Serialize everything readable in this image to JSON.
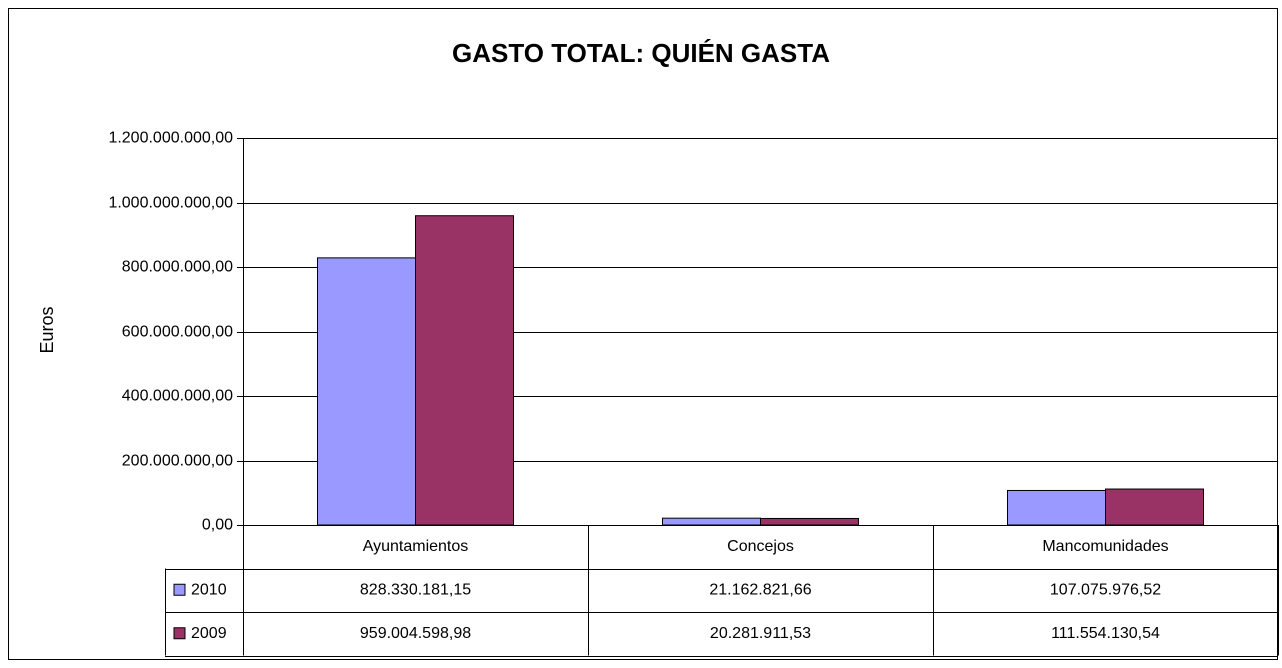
{
  "chart_data": {
    "type": "bar",
    "title": "GASTO TOTAL: QUIÉN GASTA",
    "y_label": "Euros",
    "categories": [
      "Ayuntamientos",
      "Concejos",
      "Mancomunidades"
    ],
    "series": [
      {
        "name": "2010",
        "color": "#9999ff",
        "values": [
          828330181.15,
          21162821.66,
          107075976.52
        ],
        "value_labels": [
          "828.330.181,15",
          "21.162.821,66",
          "107.075.976,52"
        ]
      },
      {
        "name": "2009",
        "color": "#993366",
        "values": [
          959004598.98,
          20281911.53,
          111554130.54
        ],
        "value_labels": [
          "959.004.598,98",
          "20.281.911,53",
          "111.554.130,54"
        ]
      }
    ],
    "ylim": [
      0,
      1200000000
    ],
    "yticks": [
      {
        "value": 0,
        "label": "0,00"
      },
      {
        "value": 200000000,
        "label": "200.000.000,00"
      },
      {
        "value": 400000000,
        "label": "400.000.000,00"
      },
      {
        "value": 600000000,
        "label": "600.000.000,00"
      },
      {
        "value": 800000000,
        "label": "800.000.000,00"
      },
      {
        "value": 1000000000,
        "label": "1.000.000.000,00"
      },
      {
        "value": 1200000000,
        "label": "1.200.000.000,00"
      }
    ],
    "grid": true
  }
}
